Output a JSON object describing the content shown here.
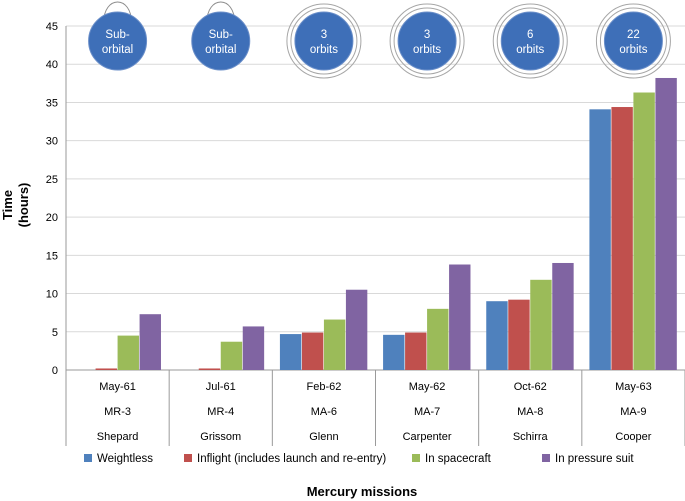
{
  "chart_data": {
    "type": "bar",
    "title": "",
    "xlabel": "Mercury missions",
    "ylabel_lines": [
      "Time",
      "(hours)"
    ],
    "ylim": [
      0,
      45
    ],
    "yticks": [
      0,
      5,
      10,
      15,
      20,
      25,
      30,
      35,
      40,
      45
    ],
    "grid": "horizontal",
    "legend_position": "bottom",
    "categories": [
      {
        "date": "May-61",
        "mission": "MR-3",
        "astronaut": "Shepard",
        "badge": [
          "Sub-",
          "orbital"
        ],
        "badge_style": "suborbital"
      },
      {
        "date": "Jul-61",
        "mission": "MR-4",
        "astronaut": "Grissom",
        "badge": [
          "Sub-",
          "orbital"
        ],
        "badge_style": "suborbital"
      },
      {
        "date": "Feb-62",
        "mission": "MA-6",
        "astronaut": "Glenn",
        "badge": [
          "3",
          "orbits"
        ],
        "badge_style": "orbital"
      },
      {
        "date": "May-62",
        "mission": "MA-7",
        "astronaut": "Carpenter",
        "badge": [
          "3",
          "orbits"
        ],
        "badge_style": "orbital"
      },
      {
        "date": "Oct-62",
        "mission": "MA-8",
        "astronaut": "Schirra",
        "badge": [
          "6",
          "orbits"
        ],
        "badge_style": "orbital"
      },
      {
        "date": "May-63",
        "mission": "MA-9",
        "astronaut": "Cooper",
        "badge": [
          "22",
          "orbits"
        ],
        "badge_style": "orbital"
      }
    ],
    "series": [
      {
        "name": "Weightless",
        "color": "#4F81BD",
        "values": [
          0.0,
          0.0,
          4.7,
          4.6,
          9.0,
          34.1
        ]
      },
      {
        "name": "Inflight (includes launch and re-entry)",
        "color": "#C0504D",
        "values": [
          0.2,
          0.2,
          4.9,
          4.9,
          9.2,
          34.4
        ]
      },
      {
        "name": "In spacecraft",
        "color": "#9BBB59",
        "values": [
          4.5,
          3.7,
          6.6,
          8.0,
          11.8,
          36.3
        ]
      },
      {
        "name": "In pressure suit",
        "color": "#8064A2",
        "values": [
          7.3,
          5.7,
          10.5,
          13.8,
          14.0,
          38.2
        ]
      }
    ]
  }
}
